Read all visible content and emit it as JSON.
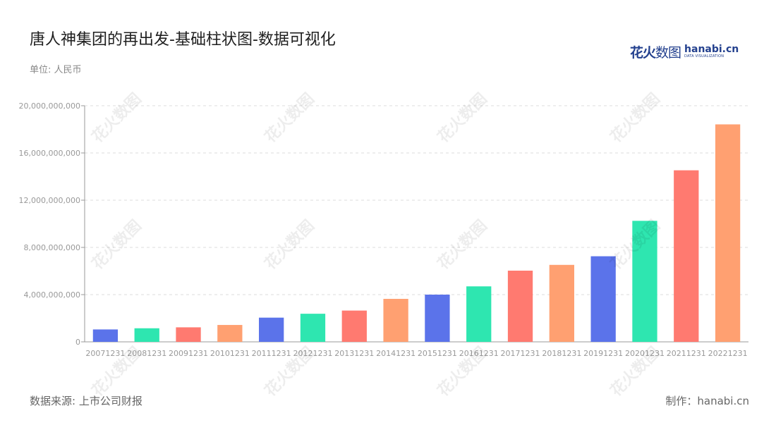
{
  "header": {
    "title": "唐人神集团的再出发-基础柱状图-数据可视化",
    "unit": "单位: 人民币"
  },
  "logo": {
    "cn_bold": "花火",
    "cn_thin": "数图",
    "en_main": "hanabi.cn",
    "en_sub": "DATA VISUALIZATION"
  },
  "watermark": "花火数图",
  "footer": {
    "source": "数据来源: 上市公司财报",
    "credit": "制作：hanabi.cn"
  },
  "colors": {
    "palette": [
      "#5b73ea",
      "#2ee6b0",
      "#ff7a70",
      "#ffa071"
    ],
    "grid": "#dddddd",
    "axis": "#999999",
    "tick_text": "#999999"
  },
  "chart_data": {
    "type": "bar",
    "categories": [
      "20071231",
      "20081231",
      "20091231",
      "20101231",
      "20111231",
      "20121231",
      "20131231",
      "20141231",
      "20151231",
      "20161231",
      "20171231",
      "20181231",
      "20191231",
      "20201231",
      "20211231",
      "20221231"
    ],
    "values": [
      1050000000,
      1150000000,
      1230000000,
      1430000000,
      2050000000,
      2380000000,
      2650000000,
      3640000000,
      4000000000,
      4700000000,
      6030000000,
      6520000000,
      7250000000,
      10250000000,
      14530000000,
      18420000000
    ],
    "ylim": [
      0,
      20000000000
    ],
    "yticks": [
      0,
      4000000000,
      8000000000,
      12000000000,
      16000000000,
      20000000000
    ],
    "ytick_labels": [
      "0",
      "4,000,000,000",
      "8,000,000,000",
      "12,000,000,000",
      "16,000,000,000",
      "20,000,000,000"
    ],
    "grid": true,
    "legend": "none",
    "xlabel": "",
    "ylabel": ""
  }
}
